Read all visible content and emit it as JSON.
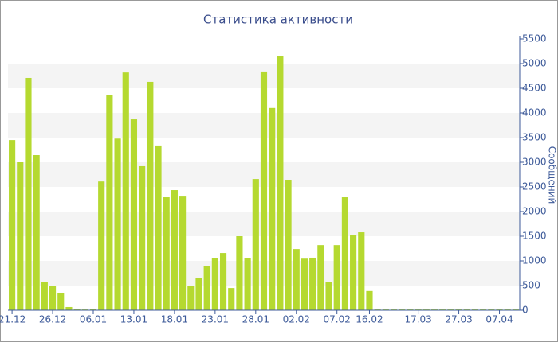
{
  "chart_data": {
    "type": "bar",
    "title": "Статистика активности",
    "y_label": "Сообщений",
    "color": "#b5d930",
    "grid": "stripes",
    "y_axis_side": "right",
    "categories": [
      "21.12",
      null,
      null,
      null,
      null,
      "26.12",
      null,
      null,
      null,
      null,
      "06.01",
      null,
      null,
      null,
      null,
      "13.01",
      null,
      null,
      null,
      null,
      "18.01",
      null,
      null,
      null,
      null,
      "23.01",
      null,
      null,
      null,
      null,
      "28.01",
      null,
      null,
      null,
      null,
      "02.02",
      null,
      null,
      null,
      null,
      "07.02",
      null,
      null,
      null,
      "16.02",
      null,
      null,
      null,
      null,
      null,
      "17.03",
      null,
      null,
      null,
      null,
      "27.03",
      null,
      null,
      null,
      null,
      "07.04",
      null,
      null
    ],
    "values": [
      3450,
      3000,
      4710,
      3145,
      565,
      484,
      355,
      65,
      30,
      15,
      30,
      2610,
      4355,
      3480,
      4820,
      3870,
      2920,
      4630,
      3340,
      2290,
      2435,
      2305,
      500,
      660,
      900,
      1050,
      1160,
      450,
      1500,
      1050,
      2660,
      4840,
      4100,
      5145,
      2645,
      1240,
      1045,
      1065,
      1320,
      565,
      1320,
      2290,
      1530,
      1580,
      390,
      15,
      15,
      15,
      15,
      15,
      15,
      15,
      15,
      15,
      15,
      15,
      15,
      15,
      15,
      15,
      15,
      15,
      15
    ],
    "ylim": [
      0,
      5500
    ],
    "yticks": [
      0,
      500,
      1000,
      1500,
      2000,
      2500,
      3000,
      3500,
      4000,
      4500,
      5000,
      5500
    ]
  }
}
